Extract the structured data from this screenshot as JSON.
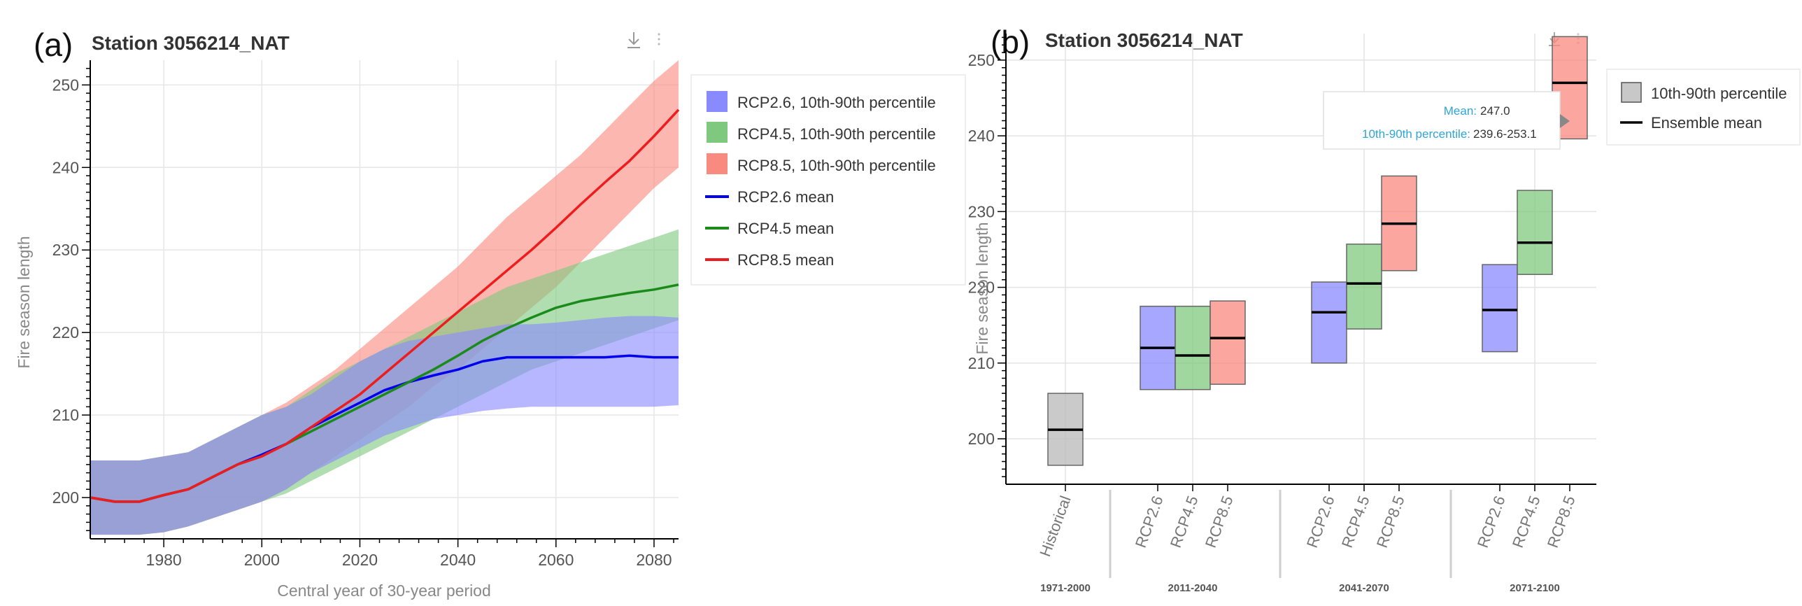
{
  "panels": {
    "a": {
      "letter": "(a)",
      "title": "Station 3056214_NAT"
    },
    "b": {
      "letter": "(b)",
      "title": "Station 3056214_NAT"
    }
  },
  "icons": [
    "download-icon",
    "more-vertical-icon"
  ],
  "colors": {
    "rcp26": "#0000ee",
    "rcp45": "#1a8a1a",
    "rcp85": "#ee1c1c",
    "band26": "#8a8aff",
    "band45": "#7fc97f",
    "band85": "#f98a80",
    "hist": "#bdbdbd"
  },
  "chart_data": [
    {
      "type": "area",
      "title": "Station 3056214_NAT",
      "xlabel": "Central year of 30-year period",
      "ylabel": "Fire season length",
      "xlim": [
        1965,
        2085
      ],
      "ylim": [
        195,
        253
      ],
      "xticks": [
        1980,
        2000,
        2020,
        2040,
        2060,
        2080
      ],
      "yticks": [
        200,
        210,
        220,
        230,
        240,
        250
      ],
      "grid": true,
      "legend_position": "right",
      "legend": [
        "RCP2.6, 10th-90th percentile",
        "RCP4.5, 10th-90th percentile",
        "RCP8.5, 10th-90th percentile",
        "RCP2.6 mean",
        "RCP4.5 mean",
        "RCP8.5 mean"
      ],
      "x": [
        1965,
        1970,
        1975,
        1980,
        1985,
        1990,
        1995,
        2000,
        2005,
        2010,
        2015,
        2020,
        2025,
        2030,
        2035,
        2040,
        2045,
        2050,
        2055,
        2060,
        2065,
        2070,
        2075,
        2080,
        2085
      ],
      "series": [
        {
          "name": "RCP2.6 mean",
          "values": [
            200,
            199.5,
            199.5,
            200.3,
            201,
            202.5,
            204,
            205.2,
            206.5,
            208.5,
            210,
            211.5,
            213,
            214,
            214.8,
            215.5,
            216.5,
            217,
            217,
            217,
            217,
            217,
            217.2,
            217,
            217
          ]
        },
        {
          "name": "RCP4.5 mean",
          "values": [
            200,
            199.5,
            199.5,
            200.3,
            201,
            202.5,
            204,
            205,
            206.5,
            208,
            209.5,
            211,
            212.5,
            214,
            215.5,
            217.2,
            219,
            220.5,
            221.8,
            223,
            223.8,
            224.3,
            224.8,
            225.2,
            225.8
          ]
        },
        {
          "name": "RCP8.5 mean",
          "values": [
            200,
            199.5,
            199.5,
            200.3,
            201,
            202.5,
            204,
            205,
            206.5,
            208.5,
            210.5,
            212.5,
            215,
            217.5,
            220,
            222.5,
            225,
            227.5,
            230,
            232.7,
            235.5,
            238.2,
            240.8,
            243.8,
            247
          ]
        },
        {
          "name": "RCP2.6, 10th-90th percentile",
          "lower": [
            195.5,
            195.5,
            195.5,
            195.8,
            196.5,
            197.5,
            198.5,
            199.5,
            201,
            203,
            204.5,
            206,
            207.5,
            208.5,
            209.5,
            210,
            210.5,
            210.8,
            211,
            211,
            211,
            211,
            211,
            211,
            211.2
          ],
          "upper": [
            204.5,
            204.5,
            204.5,
            205,
            205.5,
            207,
            208.5,
            210,
            211,
            212.5,
            214.5,
            216.5,
            218,
            219,
            219.5,
            220,
            220.5,
            221,
            221,
            221.2,
            221.5,
            221.8,
            222,
            222,
            221.8
          ]
        },
        {
          "name": "RCP4.5, 10th-90th percentile",
          "lower": [
            195.5,
            195.5,
            195.5,
            195.8,
            196.5,
            197.5,
            198.5,
            199.5,
            200.5,
            202,
            203.5,
            205,
            206.5,
            208,
            209.5,
            211,
            212.5,
            214,
            215.5,
            216.5,
            217.5,
            218.5,
            219.5,
            220.5,
            221.5
          ],
          "upper": [
            204.5,
            204.5,
            204.5,
            205,
            205.5,
            207,
            208.5,
            210,
            211,
            213,
            215,
            216.5,
            218,
            219.5,
            221,
            222.5,
            224,
            225.5,
            226.5,
            227.5,
            228.5,
            229.5,
            230.5,
            231.5,
            232.5
          ]
        },
        {
          "name": "RCP8.5, 10th-90th percentile",
          "lower": [
            195.5,
            195.5,
            195.5,
            195.8,
            196.5,
            197.5,
            198.5,
            199.5,
            201,
            203,
            205,
            207,
            209,
            211,
            213.5,
            215.5,
            218,
            220.5,
            223,
            225.5,
            228.5,
            231.5,
            234.5,
            237.5,
            240
          ],
          "upper": [
            204.5,
            204.5,
            204.5,
            205,
            205.5,
            207,
            208.5,
            210,
            211.5,
            213.5,
            215.5,
            218,
            220.5,
            223,
            225.5,
            228,
            231,
            234,
            236.5,
            239,
            241.5,
            244.5,
            247.5,
            250.5,
            253
          ]
        }
      ]
    },
    {
      "type": "bar",
      "title": "Station 3056214_NAT",
      "xlabel": "",
      "ylabel": "Fire season length",
      "ylim": [
        194,
        253.5
      ],
      "yticks": [
        200,
        210,
        220,
        230,
        240,
        250
      ],
      "grid": true,
      "legend_position": "right",
      "legend": [
        "10th-90th percentile",
        "Ensemble mean"
      ],
      "groups": [
        "1971-2000",
        "2011-2040",
        "2041-2070",
        "2071-2100"
      ],
      "categories": [
        "Historical",
        "RCP2.6",
        "RCP4.5",
        "RCP8.5",
        "RCP2.6",
        "RCP4.5",
        "RCP8.5",
        "RCP2.6",
        "RCP4.5",
        "RCP8.5"
      ],
      "boxes": [
        {
          "group": "1971-2000",
          "category": "Historical",
          "low": 196.5,
          "high": 206,
          "mean": 201.2,
          "color": "hist"
        },
        {
          "group": "2011-2040",
          "category": "RCP2.6",
          "low": 206.5,
          "high": 217.5,
          "mean": 212,
          "color": "band26"
        },
        {
          "group": "2011-2040",
          "category": "RCP4.5",
          "low": 206.5,
          "high": 217.5,
          "mean": 211,
          "color": "band45"
        },
        {
          "group": "2011-2040",
          "category": "RCP8.5",
          "low": 207.2,
          "high": 218.2,
          "mean": 213.3,
          "color": "band85"
        },
        {
          "group": "2041-2070",
          "category": "RCP2.6",
          "low": 210,
          "high": 220.7,
          "mean": 216.7,
          "color": "band26"
        },
        {
          "group": "2041-2070",
          "category": "RCP4.5",
          "low": 214.5,
          "high": 225.7,
          "mean": 220.5,
          "color": "band45"
        },
        {
          "group": "2041-2070",
          "category": "RCP8.5",
          "low": 222.2,
          "high": 234.7,
          "mean": 228.4,
          "color": "band85"
        },
        {
          "group": "2071-2100",
          "category": "RCP2.6",
          "low": 211.5,
          "high": 223,
          "mean": 217,
          "color": "band26"
        },
        {
          "group": "2071-2100",
          "category": "RCP4.5",
          "low": 221.7,
          "high": 232.8,
          "mean": 225.9,
          "color": "band45"
        },
        {
          "group": "2071-2100",
          "category": "RCP8.5",
          "low": 239.6,
          "high": 253.1,
          "mean": 247,
          "color": "band85"
        }
      ],
      "tooltip": {
        "mean_label": "Mean:",
        "mean_value": "247.0",
        "range_label": "10th-90th percentile:",
        "range_value": "239.6-253.1"
      }
    }
  ]
}
